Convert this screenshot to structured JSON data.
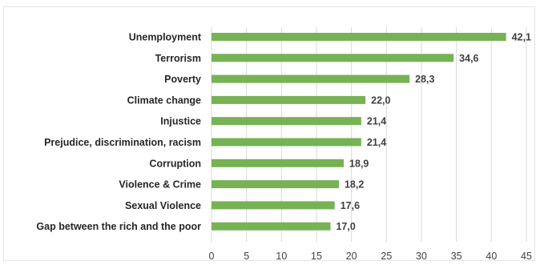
{
  "chart_data": {
    "type": "bar",
    "orientation": "horizontal",
    "categories": [
      "Unemployment",
      "Terrorism",
      "Poverty",
      "Climate change",
      "Injustice",
      "Prejudice, discrimination, racism",
      "Corruption",
      "Violence & Crime",
      "Sexual Violence",
      "Gap between the rich and the poor"
    ],
    "values": [
      42.1,
      34.6,
      28.3,
      22.0,
      21.4,
      21.4,
      18.9,
      18.2,
      17.6,
      17.0
    ],
    "value_labels": [
      "42,1",
      "34,6",
      "28,3",
      "22,0",
      "21,4",
      "21,4",
      "18,9",
      "18,2",
      "17,6",
      "17,0"
    ],
    "xlim": [
      0,
      45
    ],
    "x_ticks": [
      "0",
      "5",
      "10",
      "15",
      "20",
      "25",
      "30",
      "35",
      "40",
      "45"
    ],
    "title": "",
    "xlabel": "",
    "ylabel": "",
    "grid": "vertical",
    "legend": "none",
    "bar_color": "#77b255",
    "grid_color": "#d9d9d9"
  }
}
